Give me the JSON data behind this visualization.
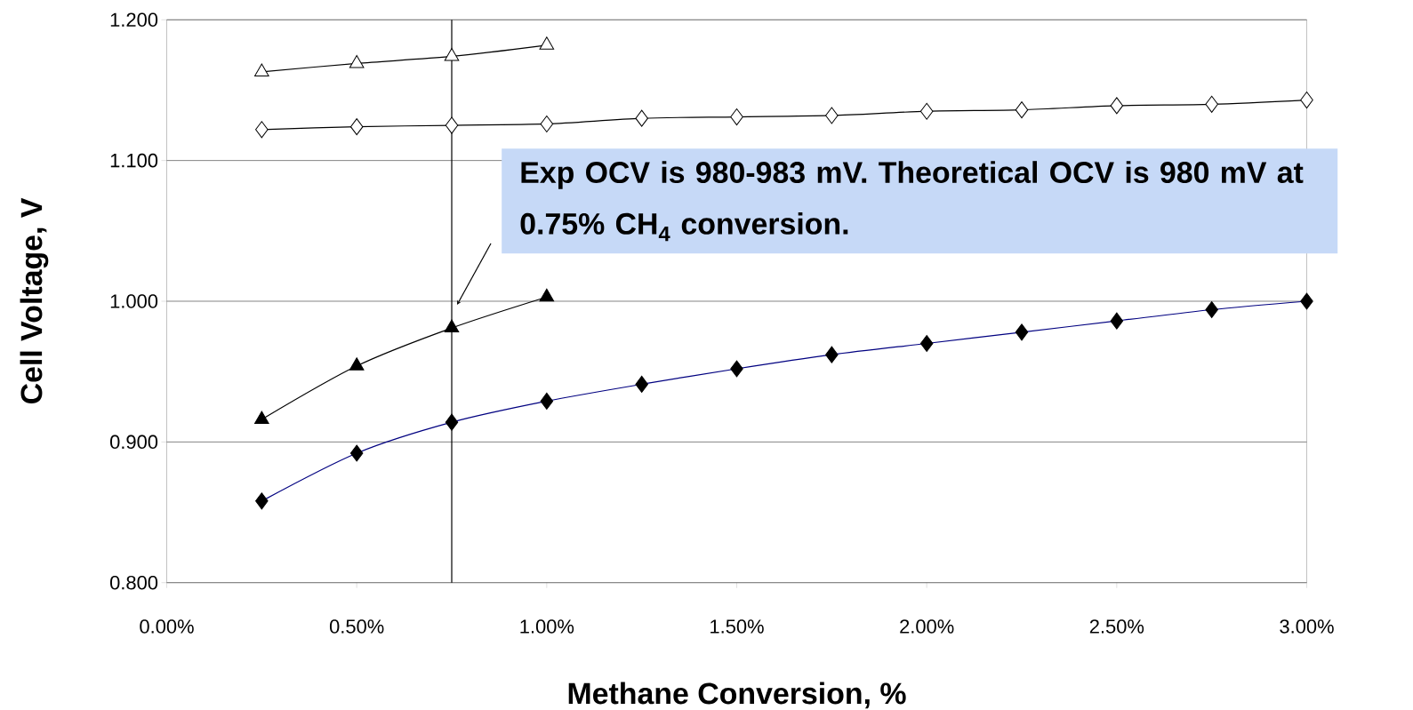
{
  "chart_data": {
    "type": "line",
    "xlabel": "Methane Conversion, %",
    "ylabel": "Cell Voltage, V",
    "xlim": [
      0,
      3
    ],
    "ylim": [
      0.8,
      1.2
    ],
    "xticks": [
      {
        "value": 0,
        "label": "0.00%"
      },
      {
        "value": 0.5,
        "label": "0.50%"
      },
      {
        "value": 1,
        "label": "1.00%"
      },
      {
        "value": 1.5,
        "label": "1.50%"
      },
      {
        "value": 2,
        "label": "2.00%"
      },
      {
        "value": 2.5,
        "label": "2.50%"
      },
      {
        "value": 3,
        "label": "3.00%"
      }
    ],
    "yticks": [
      {
        "value": 0.8,
        "label": "0.800"
      },
      {
        "value": 0.9,
        "label": "0.900"
      },
      {
        "value": 1.0,
        "label": "1.000"
      },
      {
        "value": 1.1,
        "label": "1.100"
      },
      {
        "value": 1.2,
        "label": "1.200"
      }
    ],
    "grid": "y",
    "series": [
      {
        "color": "#000000",
        "colors": [
          "#ffffff",
          "#ffffff",
          "#ffffff",
          "#ffffff"
        ],
        "marker": "triangle",
        "x": [
          0.25,
          0.5,
          0.75,
          1.0
        ],
        "values": [
          1.163,
          1.169,
          1.174,
          1.182
        ]
      },
      {
        "color": "#000000",
        "colors": [
          "#ffffff",
          "#ffffff",
          "#ffffff",
          "#ffffff",
          "#ffffff",
          "#ffffff",
          "#ffffff",
          "#ffffff",
          "#ffffff",
          "#ffffff",
          "#ffffff",
          "#ffffff"
        ],
        "marker": "diamond",
        "x": [
          0.25,
          0.5,
          0.75,
          1.0,
          1.25,
          1.5,
          1.75,
          2.0,
          2.25,
          2.5,
          2.75,
          3.0
        ],
        "values": [
          1.122,
          1.124,
          1.125,
          1.126,
          1.13,
          1.131,
          1.132,
          1.135,
          1.136,
          1.139,
          1.14,
          1.143
        ]
      },
      {
        "color": "#000000",
        "marker": "triangle",
        "x": [
          0.25,
          0.5,
          0.75,
          1.0
        ],
        "values": [
          0.916,
          0.954,
          0.981,
          1.003
        ]
      },
      {
        "color": "#000080",
        "colors": [
          "#000000",
          "#000000",
          "#000000",
          "#000000",
          "#000000",
          "#000000",
          "#000000",
          "#000000",
          "#000000",
          "#000000",
          "#000000",
          "#000000"
        ],
        "marker": "diamond",
        "x": [
          0.25,
          0.5,
          0.75,
          1.0,
          1.25,
          1.5,
          1.75,
          2.0,
          2.25,
          2.5,
          2.75,
          3.0
        ],
        "values": [
          0.858,
          0.892,
          0.914,
          0.929,
          0.941,
          0.952,
          0.962,
          0.97,
          0.978,
          0.986,
          0.994,
          1.0
        ]
      }
    ],
    "ref_lines": [
      {
        "axis": "x",
        "value": 0.75,
        "color": "#000000"
      }
    ],
    "annotations": [
      "Exp OCV is 980-983 mV. Theoretical OCV is 980 mV at 0.75% CH$_{4}$ conversion."
    ]
  }
}
